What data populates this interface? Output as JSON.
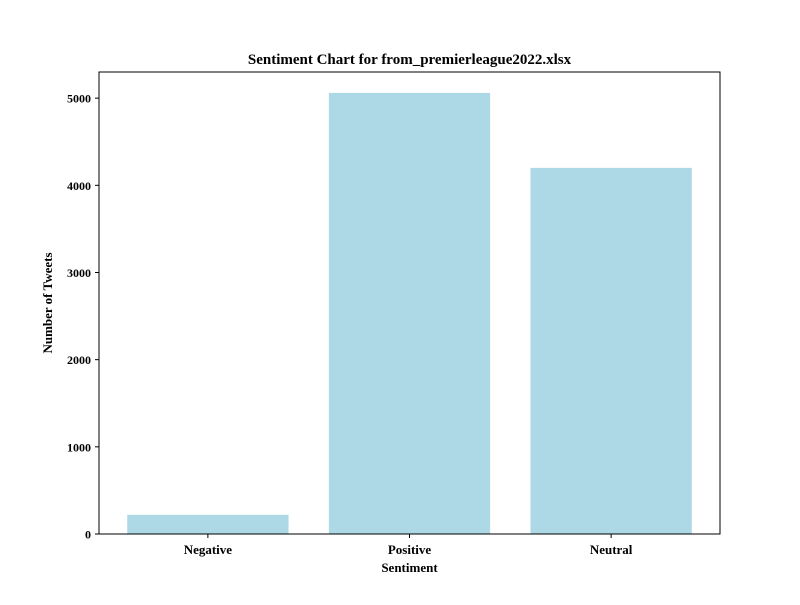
{
  "chart_data": {
    "type": "bar",
    "title": "Sentiment Chart for from_premierleague2022.xlsx",
    "xlabel": "Sentiment",
    "ylabel": "Number of Tweets",
    "categories": [
      "Negative",
      "Positive",
      "Neutral"
    ],
    "values": [
      220,
      5060,
      4200
    ],
    "ylim": [
      0,
      5300
    ],
    "yticks": [
      0,
      1000,
      2000,
      3000,
      4000,
      5000
    ],
    "bar_color": "#add8e6",
    "grid": false,
    "legend": "none"
  }
}
